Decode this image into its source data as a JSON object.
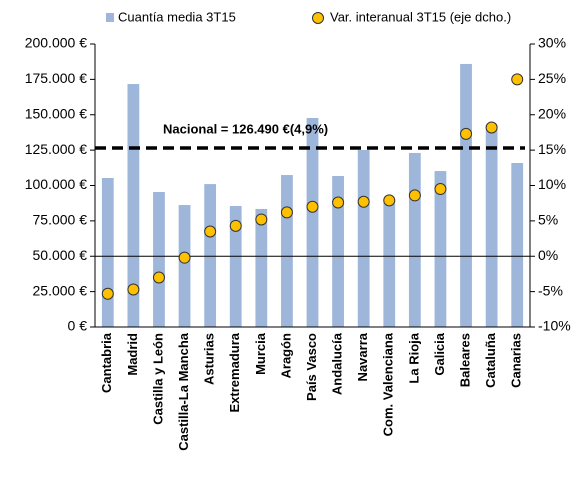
{
  "chart_data": {
    "type": "bar",
    "categories": [
      "Cantabria",
      "Madrid",
      "Castilla y León",
      "Castilla-La Mancha",
      "Asturias",
      "Extremadura",
      "Murcia",
      "Aragón",
      "País Vasco",
      "Andalucía",
      "Navarra",
      "Com. Valenciana",
      "La Rioja",
      "Galicia",
      "Baleares",
      "Cataluña",
      "Canarias"
    ],
    "series": [
      {
        "name": "Cuantía media 3T15",
        "type": "bar",
        "color": "#9db6da",
        "values": [
          105300,
          171700,
          95400,
          86200,
          101000,
          85500,
          83400,
          107400,
          147700,
          106700,
          125100,
          90500,
          123000,
          110200,
          185900,
          142800,
          115900
        ]
      },
      {
        "name": "Var. interanual 3T15 (eje dcho.)",
        "type": "scatter",
        "axis": "y2",
        "color": "#ffc000",
        "values": [
          -5.3,
          -4.7,
          -3.0,
          -0.2,
          3.5,
          4.3,
          5.2,
          6.2,
          7.0,
          7.6,
          7.7,
          7.9,
          8.6,
          9.5,
          17.3,
          18.2,
          25.0
        ]
      }
    ],
    "reference_line": {
      "value": 126490,
      "label": "Nacional = 126.490 €(4,9%)"
    },
    "ylim": [
      0,
      200000
    ],
    "yticks": [
      {
        "value": 0,
        "label": "0 €"
      },
      {
        "value": 25000,
        "label": "25.000 €"
      },
      {
        "value": 50000,
        "label": "50.000 €"
      },
      {
        "value": 75000,
        "label": "75.000 €"
      },
      {
        "value": 100000,
        "label": "100.000 €"
      },
      {
        "value": 125000,
        "label": "125.000 €"
      },
      {
        "value": 150000,
        "label": "150.000 €"
      },
      {
        "value": 175000,
        "label": "175.000 €"
      },
      {
        "value": 200000,
        "label": "200.000 €"
      }
    ],
    "y2lim": [
      -10,
      30
    ],
    "y2ticks": [
      {
        "value": -10,
        "label": "-10%"
      },
      {
        "value": -5,
        "label": "-5%"
      },
      {
        "value": 0,
        "label": "0%"
      },
      {
        "value": 5,
        "label": "5%"
      },
      {
        "value": 10,
        "label": "10%"
      },
      {
        "value": 15,
        "label": "15%"
      },
      {
        "value": 20,
        "label": "20%"
      },
      {
        "value": 25,
        "label": "25%"
      },
      {
        "value": 30,
        "label": "30%"
      }
    ],
    "grid": false
  }
}
